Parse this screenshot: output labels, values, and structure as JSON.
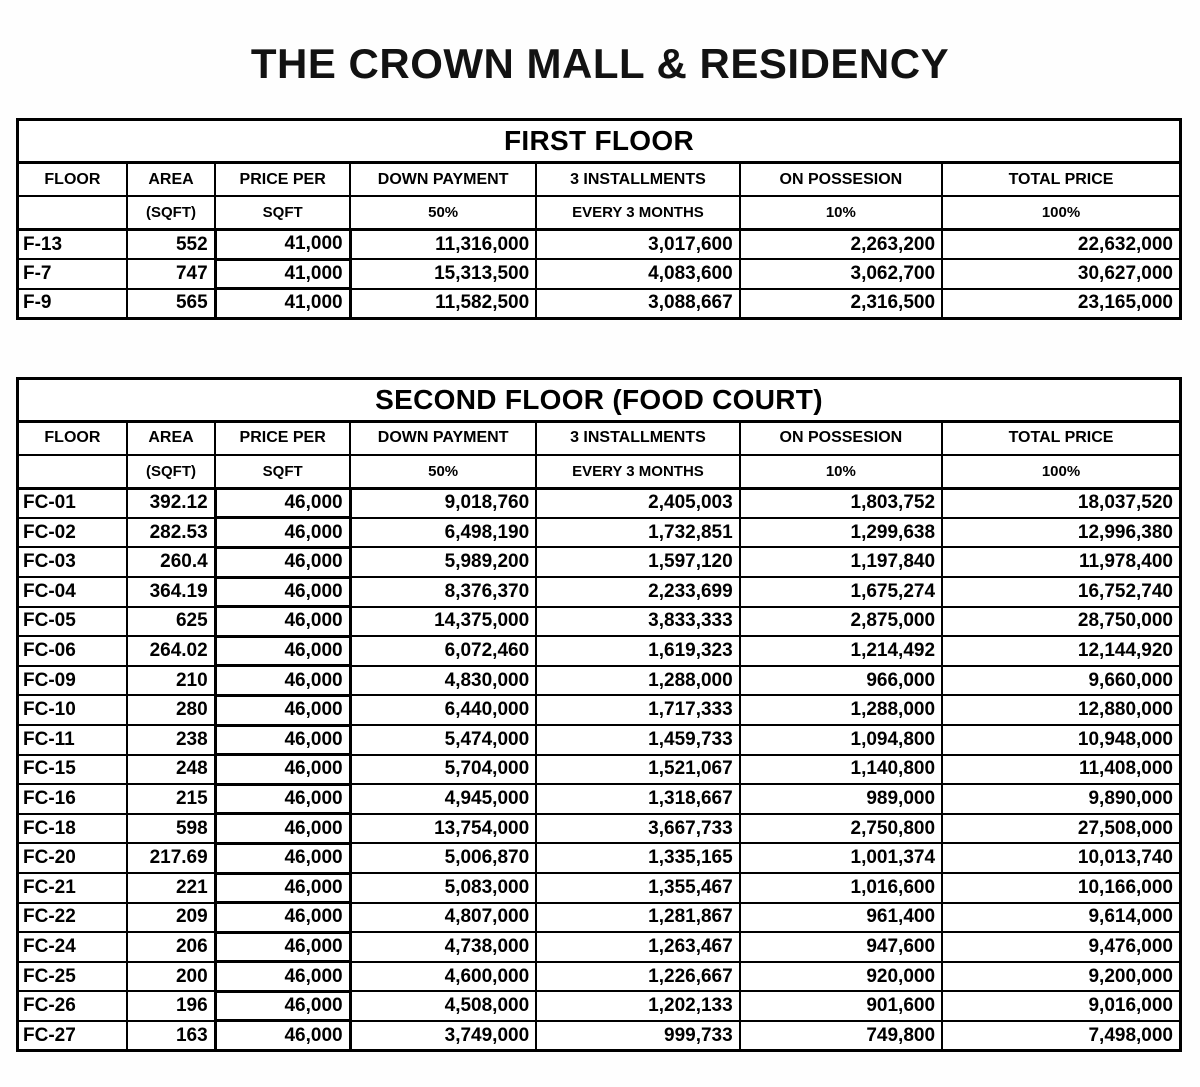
{
  "page": {
    "title": "THE CROWN MALL & RESIDENCY"
  },
  "columns": {
    "headers_row1": [
      "FLOOR",
      "AREA",
      "PRICE PER",
      "DOWN PAYMENT",
      "3 INSTALLMENTS",
      "ON POSSESION",
      "TOTAL PRICE"
    ],
    "headers_row2": [
      "",
      "(SQFT)",
      "SQFT",
      "50%",
      "EVERY 3 MONTHS",
      "10%",
      "100%"
    ]
  },
  "tables": [
    {
      "caption": "FIRST FLOOR",
      "rows": [
        [
          "F-13",
          "552",
          "41,000",
          "11,316,000",
          "3,017,600",
          "2,263,200",
          "22,632,000"
        ],
        [
          "F-7",
          "747",
          "41,000",
          "15,313,500",
          "4,083,600",
          "3,062,700",
          "30,627,000"
        ],
        [
          "F-9",
          "565",
          "41,000",
          "11,582,500",
          "3,088,667",
          "2,316,500",
          "23,165,000"
        ]
      ]
    },
    {
      "caption": "SECOND FLOOR (FOOD COURT)",
      "rows": [
        [
          "FC-01",
          "392.12",
          "46,000",
          "9,018,760",
          "2,405,003",
          "1,803,752",
          "18,037,520"
        ],
        [
          "FC-02",
          "282.53",
          "46,000",
          "6,498,190",
          "1,732,851",
          "1,299,638",
          "12,996,380"
        ],
        [
          "FC-03",
          "260.4",
          "46,000",
          "5,989,200",
          "1,597,120",
          "1,197,840",
          "11,978,400"
        ],
        [
          "FC-04",
          "364.19",
          "46,000",
          "8,376,370",
          "2,233,699",
          "1,675,274",
          "16,752,740"
        ],
        [
          "FC-05",
          "625",
          "46,000",
          "14,375,000",
          "3,833,333",
          "2,875,000",
          "28,750,000"
        ],
        [
          "FC-06",
          "264.02",
          "46,000",
          "6,072,460",
          "1,619,323",
          "1,214,492",
          "12,144,920"
        ],
        [
          "FC-09",
          "210",
          "46,000",
          "4,830,000",
          "1,288,000",
          "966,000",
          "9,660,000"
        ],
        [
          "FC-10",
          "280",
          "46,000",
          "6,440,000",
          "1,717,333",
          "1,288,000",
          "12,880,000"
        ],
        [
          "FC-11",
          "238",
          "46,000",
          "5,474,000",
          "1,459,733",
          "1,094,800",
          "10,948,000"
        ],
        [
          "FC-15",
          "248",
          "46,000",
          "5,704,000",
          "1,521,067",
          "1,140,800",
          "11,408,000"
        ],
        [
          "FC-16",
          "215",
          "46,000",
          "4,945,000",
          "1,318,667",
          "989,000",
          "9,890,000"
        ],
        [
          "FC-18",
          "598",
          "46,000",
          "13,754,000",
          "3,667,733",
          "2,750,800",
          "27,508,000"
        ],
        [
          "FC-20",
          "217.69",
          "46,000",
          "5,006,870",
          "1,335,165",
          "1,001,374",
          "10,013,740"
        ],
        [
          "FC-21",
          "221",
          "46,000",
          "5,083,000",
          "1,355,467",
          "1,016,600",
          "10,166,000"
        ],
        [
          "FC-22",
          "209",
          "46,000",
          "4,807,000",
          "1,281,867",
          "961,400",
          "9,614,000"
        ],
        [
          "FC-24",
          "206",
          "46,000",
          "4,738,000",
          "1,263,467",
          "947,600",
          "9,476,000"
        ],
        [
          "FC-25",
          "200",
          "46,000",
          "4,600,000",
          "1,226,667",
          "920,000",
          "9,200,000"
        ],
        [
          "FC-26",
          "196",
          "46,000",
          "4,508,000",
          "1,202,133",
          "901,600",
          "9,016,000"
        ],
        [
          "FC-27",
          "163",
          "46,000",
          "3,749,000",
          "999,733",
          "749,800",
          "7,498,000"
        ]
      ]
    }
  ]
}
